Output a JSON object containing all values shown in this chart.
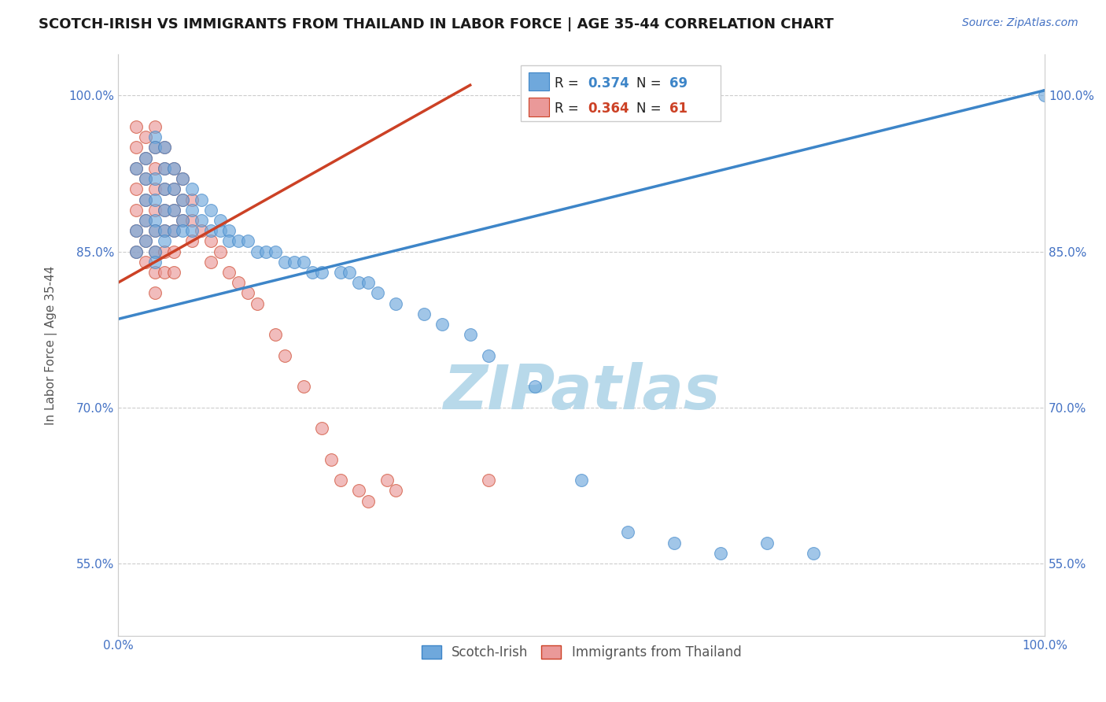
{
  "title": "SCOTCH-IRISH VS IMMIGRANTS FROM THAILAND IN LABOR FORCE | AGE 35-44 CORRELATION CHART",
  "source_text": "Source: ZipAtlas.com",
  "ylabel": "In Labor Force | Age 35-44",
  "xlim": [
    0.0,
    1.0
  ],
  "ylim": [
    0.48,
    1.04
  ],
  "yticks": [
    0.55,
    0.7,
    0.85,
    1.0
  ],
  "ytick_labels": [
    "55.0%",
    "70.0%",
    "85.0%",
    "100.0%"
  ],
  "xtick_labels": [
    "0.0%",
    "100.0%"
  ],
  "legend_blue_r_label": "R = ",
  "legend_blue_r_val": "0.374",
  "legend_blue_n_label": "N = ",
  "legend_blue_n_val": "69",
  "legend_pink_r_label": "R = ",
  "legend_pink_r_val": "0.364",
  "legend_pink_n_label": "N = ",
  "legend_pink_n_val": "61",
  "blue_color": "#6fa8dc",
  "pink_color": "#ea9999",
  "blue_line_color": "#3d85c8",
  "pink_line_color": "#cc4125",
  "watermark": "ZIPatlas",
  "watermark_color": "#b8d9ea",
  "background_color": "#ffffff",
  "grid_color": "#cccccc",
  "blue_scatter_x": [
    0.02,
    0.02,
    0.02,
    0.03,
    0.03,
    0.03,
    0.03,
    0.03,
    0.04,
    0.04,
    0.04,
    0.04,
    0.04,
    0.04,
    0.04,
    0.04,
    0.05,
    0.05,
    0.05,
    0.05,
    0.05,
    0.05,
    0.06,
    0.06,
    0.06,
    0.06,
    0.07,
    0.07,
    0.07,
    0.07,
    0.08,
    0.08,
    0.08,
    0.09,
    0.09,
    0.1,
    0.1,
    0.11,
    0.11,
    0.12,
    0.12,
    0.13,
    0.14,
    0.15,
    0.16,
    0.17,
    0.18,
    0.19,
    0.2,
    0.21,
    0.22,
    0.24,
    0.25,
    0.26,
    0.27,
    0.28,
    0.3,
    0.33,
    0.35,
    0.38,
    0.4,
    0.45,
    0.5,
    0.55,
    0.6,
    0.65,
    0.7,
    0.75,
    1.0
  ],
  "blue_scatter_y": [
    0.93,
    0.87,
    0.85,
    0.94,
    0.92,
    0.9,
    0.88,
    0.86,
    0.96,
    0.95,
    0.92,
    0.9,
    0.88,
    0.87,
    0.85,
    0.84,
    0.95,
    0.93,
    0.91,
    0.89,
    0.87,
    0.86,
    0.93,
    0.91,
    0.89,
    0.87,
    0.92,
    0.9,
    0.88,
    0.87,
    0.91,
    0.89,
    0.87,
    0.9,
    0.88,
    0.89,
    0.87,
    0.88,
    0.87,
    0.87,
    0.86,
    0.86,
    0.86,
    0.85,
    0.85,
    0.85,
    0.84,
    0.84,
    0.84,
    0.83,
    0.83,
    0.83,
    0.83,
    0.82,
    0.82,
    0.81,
    0.8,
    0.79,
    0.78,
    0.77,
    0.75,
    0.72,
    0.63,
    0.58,
    0.57,
    0.56,
    0.57,
    0.56,
    1.0
  ],
  "pink_scatter_x": [
    0.02,
    0.02,
    0.02,
    0.02,
    0.02,
    0.02,
    0.02,
    0.03,
    0.03,
    0.03,
    0.03,
    0.03,
    0.03,
    0.03,
    0.04,
    0.04,
    0.04,
    0.04,
    0.04,
    0.04,
    0.04,
    0.04,
    0.04,
    0.05,
    0.05,
    0.05,
    0.05,
    0.05,
    0.05,
    0.05,
    0.06,
    0.06,
    0.06,
    0.06,
    0.06,
    0.06,
    0.07,
    0.07,
    0.07,
    0.08,
    0.08,
    0.08,
    0.09,
    0.1,
    0.1,
    0.11,
    0.12,
    0.13,
    0.14,
    0.15,
    0.17,
    0.18,
    0.2,
    0.22,
    0.23,
    0.24,
    0.26,
    0.27,
    0.29,
    0.3,
    0.4
  ],
  "pink_scatter_y": [
    0.97,
    0.95,
    0.93,
    0.91,
    0.89,
    0.87,
    0.85,
    0.96,
    0.94,
    0.92,
    0.9,
    0.88,
    0.86,
    0.84,
    0.97,
    0.95,
    0.93,
    0.91,
    0.89,
    0.87,
    0.85,
    0.83,
    0.81,
    0.95,
    0.93,
    0.91,
    0.89,
    0.87,
    0.85,
    0.83,
    0.93,
    0.91,
    0.89,
    0.87,
    0.85,
    0.83,
    0.92,
    0.9,
    0.88,
    0.9,
    0.88,
    0.86,
    0.87,
    0.86,
    0.84,
    0.85,
    0.83,
    0.82,
    0.81,
    0.8,
    0.77,
    0.75,
    0.72,
    0.68,
    0.65,
    0.63,
    0.62,
    0.61,
    0.63,
    0.62,
    0.63
  ],
  "blue_trend_x": [
    0.0,
    1.0
  ],
  "blue_trend_y_start": 0.785,
  "blue_trend_y_end": 1.005,
  "pink_trend_x": [
    0.0,
    0.38
  ],
  "pink_trend_y_start": 0.82,
  "pink_trend_y_end": 1.01
}
